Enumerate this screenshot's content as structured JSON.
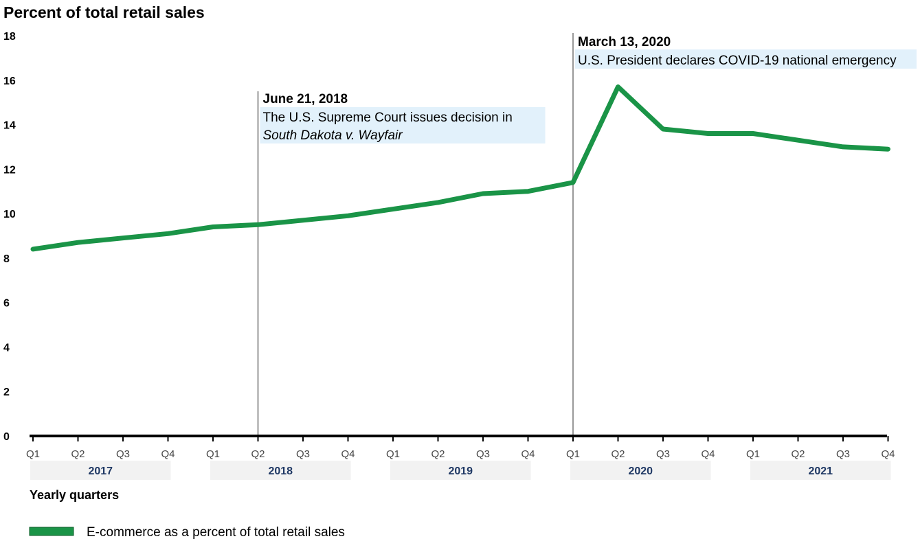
{
  "chart_data": {
    "type": "line",
    "title": "Percent of total retail sales",
    "xlabel": "Yearly quarters",
    "ylabel": "",
    "ylim": [
      0,
      18
    ],
    "yticks": [
      "0",
      "2",
      "4",
      "6",
      "8",
      "10",
      "12",
      "14",
      "16",
      "18"
    ],
    "x": [
      "Q1",
      "Q2",
      "Q3",
      "Q4",
      "Q1",
      "Q2",
      "Q3",
      "Q4",
      "Q1",
      "Q2",
      "Q3",
      "Q4",
      "Q1",
      "Q2",
      "Q3",
      "Q4",
      "Q1",
      "Q2",
      "Q3",
      "Q4"
    ],
    "years": [
      "2017",
      "2018",
      "2019",
      "2020",
      "2021"
    ],
    "series": [
      {
        "name": "E-commerce as a percent of total retail sales",
        "color": "#1a9447",
        "values": [
          8.4,
          8.7,
          8.9,
          9.1,
          9.4,
          9.5,
          9.7,
          9.9,
          10.2,
          10.5,
          10.9,
          11.0,
          11.4,
          15.7,
          13.8,
          13.6,
          13.6,
          13.3,
          13.0,
          12.9
        ]
      }
    ],
    "annotations": [
      {
        "index": 5,
        "date": "June 21, 2018",
        "line1": "The U.S. Supreme Court issues decision in",
        "line2": "South Dakota v. Wayfair"
      },
      {
        "index": 12,
        "date": "March 13, 2020",
        "line1": "U.S. President declares COVID-19 national emergency"
      }
    ],
    "grid": false,
    "legend_position": "bottom-left"
  },
  "colors": {
    "line": "#1a9447",
    "annotation_box": "#e2f1fb",
    "year_band": "#f2f2f2",
    "year_text": "#1f3864",
    "vline": "#999999"
  }
}
